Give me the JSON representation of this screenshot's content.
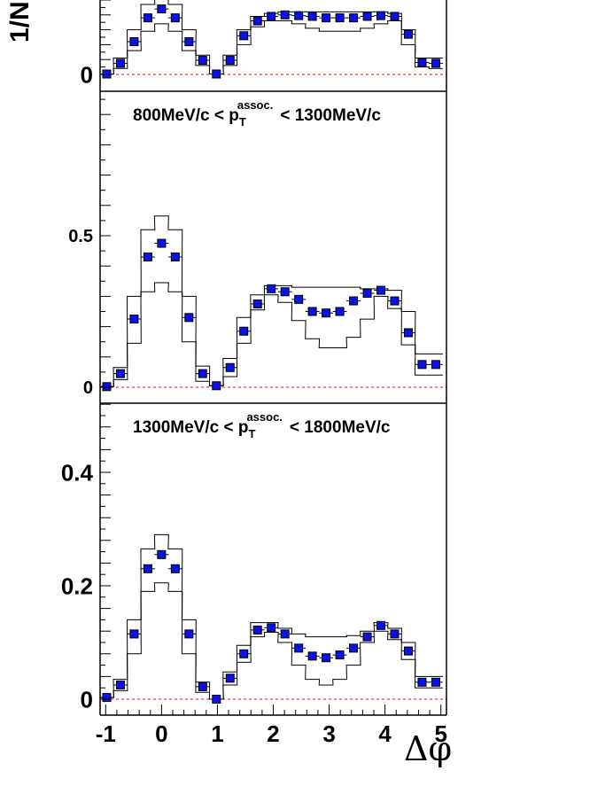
{
  "y_axis_title": "1/N",
  "x_axis_title": "Δφ",
  "x_tick_labels": [
    "-1",
    "0",
    "1",
    "2",
    "3",
    "4",
    "5"
  ],
  "colors": {
    "marker": "#0a12e6",
    "marker_edge": "#000000",
    "band": "#000000",
    "zero_line": "#ff0000",
    "frame": "#000000"
  },
  "chart_data": [
    {
      "type": "scatter",
      "panel": "top",
      "title": "",
      "xlim": [
        -1.1,
        5.1
      ],
      "ylim": [
        0,
        0.5
      ],
      "y_tick_labels": [
        "0"
      ],
      "zero_line": "dashed",
      "x": [
        -0.9817,
        -0.7363,
        -0.4909,
        -0.2454,
        0.0,
        0.2454,
        0.4909,
        0.7363,
        0.9817,
        1.2272,
        1.4726,
        1.7181,
        1.9635,
        2.2089,
        2.4544,
        2.6998,
        2.9452,
        3.1907,
        3.4361,
        3.6816,
        3.927,
        4.1724,
        4.4179,
        4.6633,
        4.9087
      ],
      "series": [
        {
          "values": [
            0.003,
            0.075,
            0.22,
            0.38,
            0.44,
            0.38,
            0.22,
            0.095,
            0.003,
            0.095,
            0.26,
            0.36,
            0.39,
            0.4,
            0.395,
            0.39,
            0.38,
            0.38,
            0.38,
            0.39,
            0.395,
            0.39,
            0.27,
            0.08,
            0.075
          ]
        }
      ],
      "band_upper": [
        0.003,
        0.11,
        0.3,
        0.47,
        0.55,
        0.47,
        0.3,
        0.13,
        0.003,
        0.13,
        0.3,
        0.39,
        0.41,
        0.42,
        0.42,
        0.42,
        0.42,
        0.42,
        0.42,
        0.42,
        0.42,
        0.41,
        0.3,
        0.11,
        0.11
      ],
      "band_lower": [
        0.003,
        0.04,
        0.16,
        0.29,
        0.34,
        0.29,
        0.16,
        0.06,
        0.003,
        0.06,
        0.2,
        0.32,
        0.36,
        0.36,
        0.34,
        0.31,
        0.29,
        0.29,
        0.29,
        0.31,
        0.34,
        0.36,
        0.2,
        0.05,
        0.04
      ]
    },
    {
      "type": "scatter",
      "panel": "middle",
      "title": "800MeV/c < p_T^assoc. < 1300MeV/c",
      "xlim": [
        -1.1,
        5.1
      ],
      "ylim": [
        0,
        0.95
      ],
      "y_tick_labels": [
        "0",
        "0.5"
      ],
      "yticks": [
        0,
        0.5
      ],
      "zero_line": "dashed",
      "x": [
        -0.9817,
        -0.7363,
        -0.4909,
        -0.2454,
        0.0,
        0.2454,
        0.4909,
        0.7363,
        0.9817,
        1.2272,
        1.4726,
        1.7181,
        1.9635,
        2.2089,
        2.4544,
        2.6998,
        2.9452,
        3.1907,
        3.4361,
        3.6816,
        3.927,
        4.1724,
        4.4179,
        4.6633,
        4.9087
      ],
      "series": [
        {
          "values": [
            0.002,
            0.045,
            0.225,
            0.43,
            0.475,
            0.43,
            0.23,
            0.045,
            0.005,
            0.065,
            0.185,
            0.275,
            0.325,
            0.315,
            0.29,
            0.25,
            0.245,
            0.25,
            0.285,
            0.31,
            0.32,
            0.285,
            0.18,
            0.075,
            0.075
          ]
        }
      ],
      "band_upper": [
        0.002,
        0.065,
        0.3,
        0.52,
        0.565,
        0.52,
        0.3,
        0.07,
        0.005,
        0.095,
        0.23,
        0.305,
        0.335,
        0.335,
        0.33,
        0.33,
        0.33,
        0.33,
        0.33,
        0.325,
        0.325,
        0.32,
        0.25,
        0.11,
        0.11
      ],
      "band_lower": [
        0.002,
        0.025,
        0.145,
        0.315,
        0.345,
        0.315,
        0.15,
        0.02,
        0.005,
        0.035,
        0.145,
        0.255,
        0.305,
        0.28,
        0.22,
        0.16,
        0.13,
        0.13,
        0.165,
        0.225,
        0.3,
        0.26,
        0.14,
        0.04,
        0.04
      ]
    },
    {
      "type": "scatter",
      "panel": "bottom",
      "title": "1300MeV/c < p_T^assoc. < 1800MeV/c",
      "xlim": [
        -1.1,
        5.1
      ],
      "ylim": [
        -0.02,
        0.5
      ],
      "y_tick_labels": [
        "0",
        "0.2",
        "0.4"
      ],
      "yticks": [
        0,
        0.2,
        0.4
      ],
      "zero_line": "dashed",
      "x": [
        -0.9817,
        -0.7363,
        -0.4909,
        -0.2454,
        0.0,
        0.2454,
        0.4909,
        0.7363,
        0.9817,
        1.2272,
        1.4726,
        1.7181,
        1.9635,
        2.2089,
        2.4544,
        2.6998,
        2.9452,
        3.1907,
        3.4361,
        3.6816,
        3.927,
        4.1724,
        4.4179,
        4.6633,
        4.9087
      ],
      "series": [
        {
          "values": [
            0.003,
            0.025,
            0.115,
            0.23,
            0.255,
            0.23,
            0.115,
            0.022,
            0.0,
            0.037,
            0.08,
            0.122,
            0.126,
            0.115,
            0.09,
            0.076,
            0.073,
            0.078,
            0.09,
            0.11,
            0.13,
            0.115,
            0.085,
            0.03,
            0.03
          ]
        }
      ],
      "band_upper": [
        0.003,
        0.035,
        0.14,
        0.265,
        0.29,
        0.265,
        0.14,
        0.03,
        0.0,
        0.048,
        0.095,
        0.135,
        0.135,
        0.125,
        0.115,
        0.11,
        0.11,
        0.11,
        0.112,
        0.12,
        0.135,
        0.125,
        0.1,
        0.04,
        0.04
      ],
      "band_lower": [
        0.003,
        0.015,
        0.08,
        0.19,
        0.205,
        0.19,
        0.08,
        0.012,
        0.0,
        0.025,
        0.065,
        0.11,
        0.118,
        0.1,
        0.06,
        0.035,
        0.025,
        0.035,
        0.06,
        0.1,
        0.12,
        0.105,
        0.07,
        0.02,
        0.02
      ]
    }
  ],
  "panel_titles": [
    {
      "lead": "800MeV/c < p",
      "sub": "T",
      "sup": "assoc.",
      "tail": "< 1300MeV/c"
    },
    {
      "lead": "1300MeV/c < p",
      "sub": "T",
      "sup": "assoc.",
      "tail": "< 1800MeV/c"
    }
  ]
}
